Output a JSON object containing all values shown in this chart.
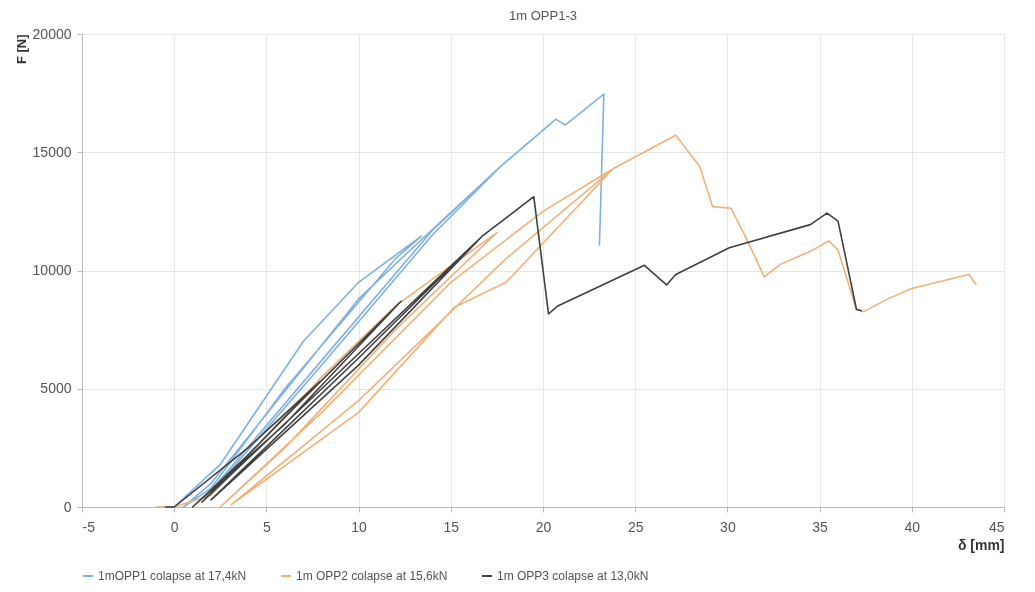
{
  "chart_data": {
    "type": "line",
    "title": "1m OPP1-3",
    "xlabel": "δ [mm]",
    "ylabel": "F [N]",
    "xlim": [
      -5,
      45
    ],
    "xticks": [
      -5,
      0,
      5,
      10,
      15,
      20,
      25,
      30,
      35,
      40,
      45
    ],
    "ylim": [
      0,
      20000
    ],
    "yticks": [
      0,
      5000,
      10000,
      15000,
      20000
    ],
    "grid": true,
    "legend": "bottom",
    "line_style": "solid",
    "marker": "none",
    "series": [
      {
        "name": "1mOPP1 colapse at 17,4kN",
        "color": "#7fb2e0",
        "x": [
          -1,
          0,
          2.5,
          7,
          10,
          13.4,
          12,
          6,
          2,
          0.5,
          2,
          10,
          13.4,
          17.7,
          14,
          8,
          3,
          2,
          8,
          14,
          17.7,
          20.7,
          21.2,
          23.3,
          23.06
        ],
        "values": [
          0,
          0,
          1800,
          7000,
          9500,
          11450,
          10500,
          5000,
          800,
          0,
          1000,
          8800,
          11300,
          14400,
          11500,
          6000,
          1500,
          700,
          6200,
          11700,
          14400,
          16400,
          16150,
          17460,
          11050
        ]
      },
      {
        "name": "1m OPP2 colapse at 15,6kN",
        "color": "#f0b27a",
        "x": [
          -1,
          0,
          2,
          8,
          12,
          17.5,
          12,
          6,
          2.5,
          8,
          15,
          20,
          23.8,
          18,
          15.2,
          10,
          3.1,
          10,
          18,
          23.8,
          27.2,
          28.5,
          29.2,
          30.2,
          31.0,
          32.0,
          32.9,
          34.5,
          35.5,
          36.0,
          37.0,
          37.4,
          38.7,
          40.0,
          43.1,
          43.5
        ],
        "values": [
          0,
          0,
          500,
          5500,
          8500,
          11600,
          7500,
          2500,
          0,
          4000,
          9500,
          12500,
          14300,
          9500,
          8450,
          4000,
          100,
          4500,
          10500,
          14300,
          15720,
          14400,
          12700,
          12630,
          11400,
          9730,
          10270,
          10810,
          11250,
          10860,
          8350,
          8260,
          8800,
          9240,
          9830,
          9390
        ]
      },
      {
        "name": "1m OPP3 colapse at 13,0kN",
        "color": "#404040",
        "x": [
          -0.5,
          0,
          4,
          7.9,
          4,
          1,
          6,
          12.3,
          6,
          1.5,
          8,
          16.7,
          10,
          2,
          10,
          16.7,
          19.5,
          20.3,
          20.8,
          25.5,
          26.7,
          27.2,
          30.1,
          34.5,
          35.4,
          36.0,
          37.0,
          37.3
        ],
        "values": [
          0,
          0,
          2500,
          5300,
          2200,
          0,
          3500,
          8700,
          3800,
          200,
          5000,
          11450,
          6000,
          300,
          6300,
          11450,
          13120,
          8160,
          8500,
          10220,
          9390,
          9830,
          10960,
          11940,
          12430,
          12090,
          8350,
          8300
        ]
      }
    ]
  }
}
